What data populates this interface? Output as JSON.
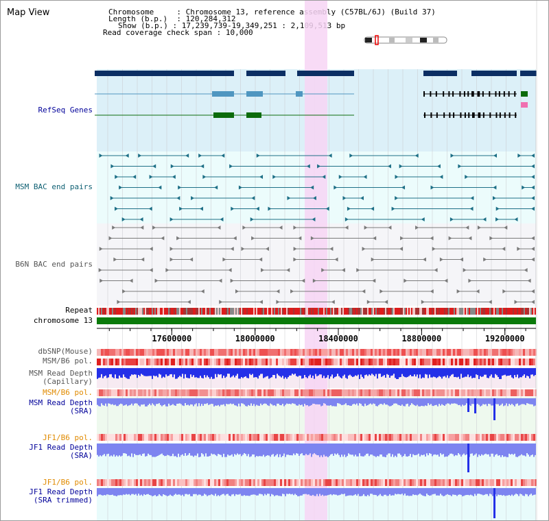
{
  "title": "Map View",
  "header": {
    "chromosome_key": "Chromosome",
    "chromosome_value": "Chromosome 13, reference assembly (C57BL/6J) (Build 37)",
    "length_key": "Length (b.p.)",
    "length_value": "120,284,312",
    "show_key": "Show (b.p.)",
    "show_value": "17,239,739-19,349,251 : 2,109,513 bp",
    "coverage_key": "Read coverage check span",
    "coverage_value": "10,000"
  },
  "tracks": {
    "refseq": "RefSeq Genes",
    "msm_bac": "MSM BAC end pairs",
    "b6n_bac": "B6N BAC end pairs",
    "repeat": "Repeat",
    "chromosome": "chromosome 13",
    "dbsnp": "dbSNP(Mouse)",
    "msm_pol": "MSM/B6 pol.",
    "msm_depth_cap_1": "MSM Read Depth",
    "msm_depth_cap_2": "(Capillary)",
    "msm_pol2": "MSM/B6 pol.",
    "msm_depth_sra_1": "MSM Read Depth",
    "msm_depth_sra_2": "(SRA)",
    "jf1_pol": "JF1/B6 pol.",
    "jf1_depth_sra_1": "JF1 Read Depth",
    "jf1_depth_sra_2": "(SRA)",
    "jf1_pol2": "JF1/B6 pol.",
    "jf1_depth_trim_1": "JF1 Read Depth",
    "jf1_depth_trim_2": "(SRA trimmed)"
  },
  "axis": {
    "ticks": [
      "17600000",
      "18000000",
      "18400000",
      "18800000",
      "19200000"
    ],
    "range_bp": [
      17239739,
      19349251
    ]
  },
  "colors": {
    "refseq_bg": "#dcf0f8",
    "bac_bg": "#ecfcfc",
    "highlight": "#f7d5f5",
    "gene_dark": "#0b2e63",
    "gene_mid": "#4f96c0",
    "gene_green": "#0b6b0b",
    "bac_msm": "#1d6f86",
    "bac_b6n": "#7a7a7a",
    "chromosome": "#0a7a0a",
    "depth_blue": "#2430e8",
    "depth_light": "#7d84f0",
    "pol_red": "#ee4444",
    "label_orange": "#e08a00",
    "label_navy": "#000099"
  }
}
